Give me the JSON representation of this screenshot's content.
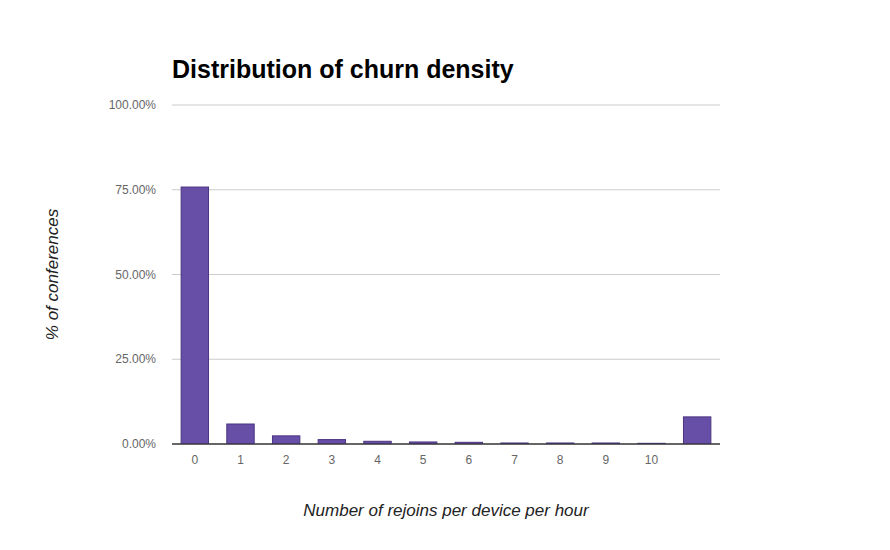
{
  "chart_data": {
    "type": "bar",
    "title": "Distribution of churn density",
    "x_label": "Number of rejoins per device per hour",
    "y_label": "% of conferences",
    "categories": [
      "0",
      "1",
      "2",
      "3",
      "4",
      "5",
      "6",
      "7",
      "8",
      "9",
      "10",
      null
    ],
    "values": [
      75.8,
      5.9,
      2.4,
      1.3,
      0.8,
      0.6,
      0.5,
      0.3,
      0.3,
      0.3,
      0.2,
      8.0
    ],
    "color": "#674ea7",
    "ylim": [
      0,
      100
    ],
    "yticks": [
      {
        "value": 0,
        "label": "0.00%"
      },
      {
        "value": 25,
        "label": "25.00%"
      },
      {
        "value": 50,
        "label": "50.00%"
      },
      {
        "value": 75,
        "label": "75.00%"
      },
      {
        "value": 100,
        "label": "100.00%"
      }
    ],
    "grid": true
  }
}
